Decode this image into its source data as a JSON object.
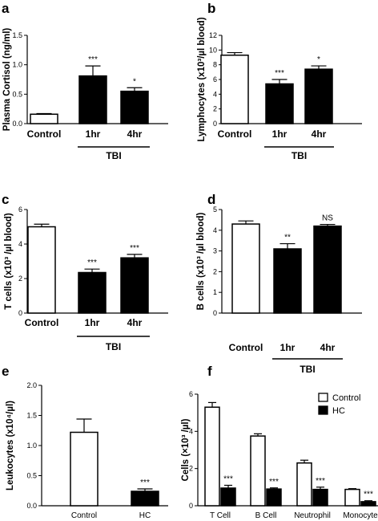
{
  "chart_data": [
    {
      "panel": "a",
      "type": "bar",
      "categories": [
        "Control",
        "1hr",
        "4hr"
      ],
      "values": [
        0.16,
        0.81,
        0.55
      ],
      "errors": [
        0.01,
        0.17,
        0.06
      ],
      "fills": [
        "#ffffff",
        "#000000",
        "#000000"
      ],
      "significance": [
        "",
        "***",
        "*"
      ],
      "ylabel": "Plasma Cortisol (ng/ml)",
      "ylim": [
        0,
        1.5
      ],
      "yticks": [
        "0.0",
        "0.5",
        "1.0",
        "1.5"
      ],
      "group_label": "TBI",
      "group_span": [
        1,
        2
      ]
    },
    {
      "panel": "b",
      "type": "bar",
      "categories": [
        "Control",
        "1hr",
        "4hr"
      ],
      "values": [
        9.3,
        5.4,
        7.4
      ],
      "errors": [
        0.35,
        0.6,
        0.45
      ],
      "fills": [
        "#ffffff",
        "#000000",
        "#000000"
      ],
      "significance": [
        "",
        "***",
        "*"
      ],
      "ylabel": "Lymphocytes (x10³/µl blood)",
      "ylim": [
        0,
        12
      ],
      "yticks": [
        "0",
        "2",
        "4",
        "6",
        "8",
        "10",
        "12"
      ],
      "group_label": "TBI",
      "group_span": [
        1,
        2
      ]
    },
    {
      "panel": "c",
      "type": "bar",
      "categories": [
        "Control",
        "1hr",
        "4hr"
      ],
      "values": [
        5.0,
        2.35,
        3.2
      ],
      "errors": [
        0.15,
        0.2,
        0.2
      ],
      "fills": [
        "#ffffff",
        "#000000",
        "#000000"
      ],
      "significance": [
        "",
        "***",
        "***"
      ],
      "ylabel": "T cells (x10³ /µl blood)",
      "ylim": [
        0,
        6
      ],
      "yticks": [
        "0",
        "2",
        "4",
        "6"
      ],
      "group_label": "TBI",
      "group_span": [
        1,
        2
      ]
    },
    {
      "panel": "d",
      "type": "bar",
      "categories": [
        "Control",
        "1hr",
        "4hr"
      ],
      "values": [
        4.3,
        3.1,
        4.2
      ],
      "errors": [
        0.15,
        0.25,
        0.08
      ],
      "fills": [
        "#ffffff",
        "#000000",
        "#000000"
      ],
      "significance": [
        "",
        "**",
        "NS"
      ],
      "ylabel": "B cells (x10³ /µl blood)",
      "ylim": [
        0,
        5
      ],
      "yticks": [
        "0",
        "1",
        "2",
        "3",
        "4",
        "5"
      ],
      "group_label": "TBI",
      "group_span": [
        1,
        2
      ]
    },
    {
      "panel": "e",
      "type": "bar",
      "categories": [
        "Control",
        "HC"
      ],
      "values": [
        1.22,
        0.24
      ],
      "errors": [
        0.22,
        0.04
      ],
      "fills": [
        "#ffffff",
        "#000000"
      ],
      "significance": [
        "",
        "***"
      ],
      "ylabel": "Leukocytes (x10⁴/µl)",
      "ylim": [
        0,
        2.0
      ],
      "yticks": [
        "0.0",
        "0.5",
        "1.0",
        "1.5",
        "2.0"
      ]
    },
    {
      "panel": "f",
      "type": "bar",
      "categories": [
        "T Cell",
        "B Cell",
        "Neutrophil",
        "Monocyte"
      ],
      "series": [
        {
          "name": "Control",
          "fill": "#ffffff",
          "values": [
            5.3,
            3.75,
            2.3,
            0.88
          ],
          "errors": [
            0.25,
            0.12,
            0.15,
            0.04
          ],
          "significance": [
            "",
            "",
            "",
            ""
          ]
        },
        {
          "name": "HC",
          "fill": "#000000",
          "values": [
            0.95,
            0.9,
            0.88,
            0.22
          ],
          "errors": [
            0.15,
            0.06,
            0.12,
            0.05
          ],
          "significance": [
            "***",
            "***",
            "***",
            "***"
          ]
        }
      ],
      "ylabel": "Cells (×10³ /µl)",
      "ylim": [
        0,
        6
      ],
      "yticks": [
        "0",
        "2",
        "4",
        "6"
      ],
      "legend": "top-right"
    }
  ]
}
